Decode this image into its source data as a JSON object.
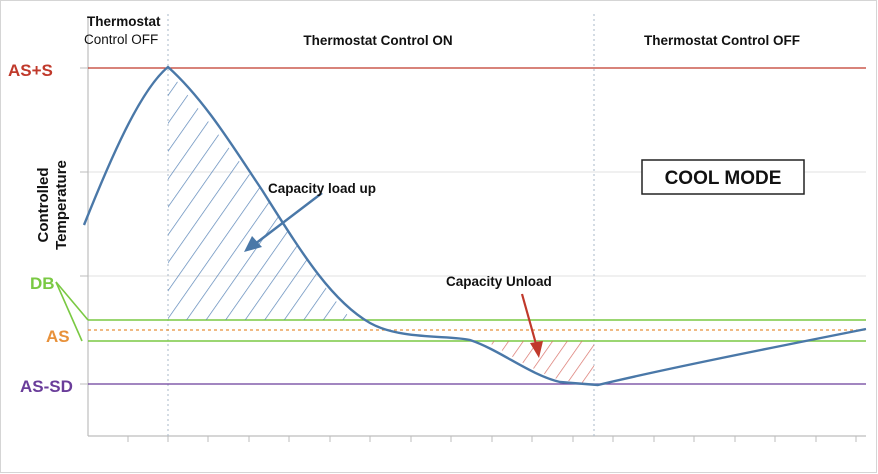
{
  "zones": {
    "left_line1": "Thermostat",
    "left_line2": "Control OFF",
    "middle": "Thermostat Control ON",
    "right": "Thermostat Control OFF"
  },
  "levels": {
    "as_plus_s": "AS+S",
    "db": "DB",
    "as": "AS",
    "as_minus_sd": "AS-SD"
  },
  "y_axis": {
    "line1": "Controlled",
    "line2": "Temperature"
  },
  "annotations": {
    "capacity_load_up": "Capacity load up",
    "capacity_unload": "Capacity Unload"
  },
  "mode_box": "COOL MODE",
  "colors": {
    "curve": "#4a78a8",
    "hatch_blue": "#5b86b8",
    "hatch_red": "#d9726a",
    "as_plus_s": "#c0392b",
    "db": "#7ac943",
    "as": "#e8913a",
    "as_minus_sd": "#6a3d9a",
    "arrow_red": "#c0392b",
    "grid": "#c9c9c9"
  }
}
